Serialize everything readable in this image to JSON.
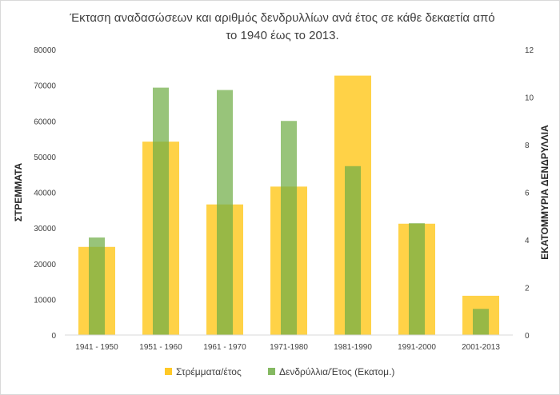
{
  "chart_data": {
    "type": "bar",
    "title": "Έκταση αναδασώσεων και αριθμός δενδρυλλίων ανά έτος σε κάθε δεκαετία από το 1940 έως το 2013.",
    "title_lines": [
      "Έκταση αναδασώσεων και αριθμός δενδρυλλίων ανά έτος σε κάθε δεκαετία από",
      "το 1940 έως το 2013."
    ],
    "categories": [
      "1941 - 1950",
      "1951 - 1960",
      "1961 - 1970",
      "1971-1980",
      "1981-1990",
      "1991-2000",
      "2001-2013"
    ],
    "ylabel": "ΣΤΡΕΜΜΑΤΑ",
    "y2label": "ΕΚΑΤΟΜΜΥΡΙΑ ΔΕΝΔΡΥΛΛΙΑ",
    "ylim": [
      0,
      80000
    ],
    "y2lim": [
      0,
      12
    ],
    "yticks": [
      "0",
      "10000",
      "20000",
      "30000",
      "40000",
      "50000",
      "60000",
      "70000",
      "80000"
    ],
    "y2ticks": [
      "0",
      "2",
      "4",
      "6",
      "8",
      "10",
      "12"
    ],
    "grid": false,
    "legend_position": "bottom",
    "series": [
      {
        "name": "Στρέμματα/έτος",
        "axis": "left",
        "color": "#FFC000",
        "opacity": 0.72,
        "values": [
          24700,
          54200,
          36600,
          41600,
          72700,
          31200,
          11000
        ]
      },
      {
        "name": "Δενδρύλλια/Έτος (Εκατομ.)",
        "axis": "right",
        "color": "#70AD47",
        "opacity": 0.72,
        "values": [
          4.1,
          10.4,
          10.3,
          9.0,
          7.1,
          4.7,
          1.1
        ]
      }
    ]
  }
}
